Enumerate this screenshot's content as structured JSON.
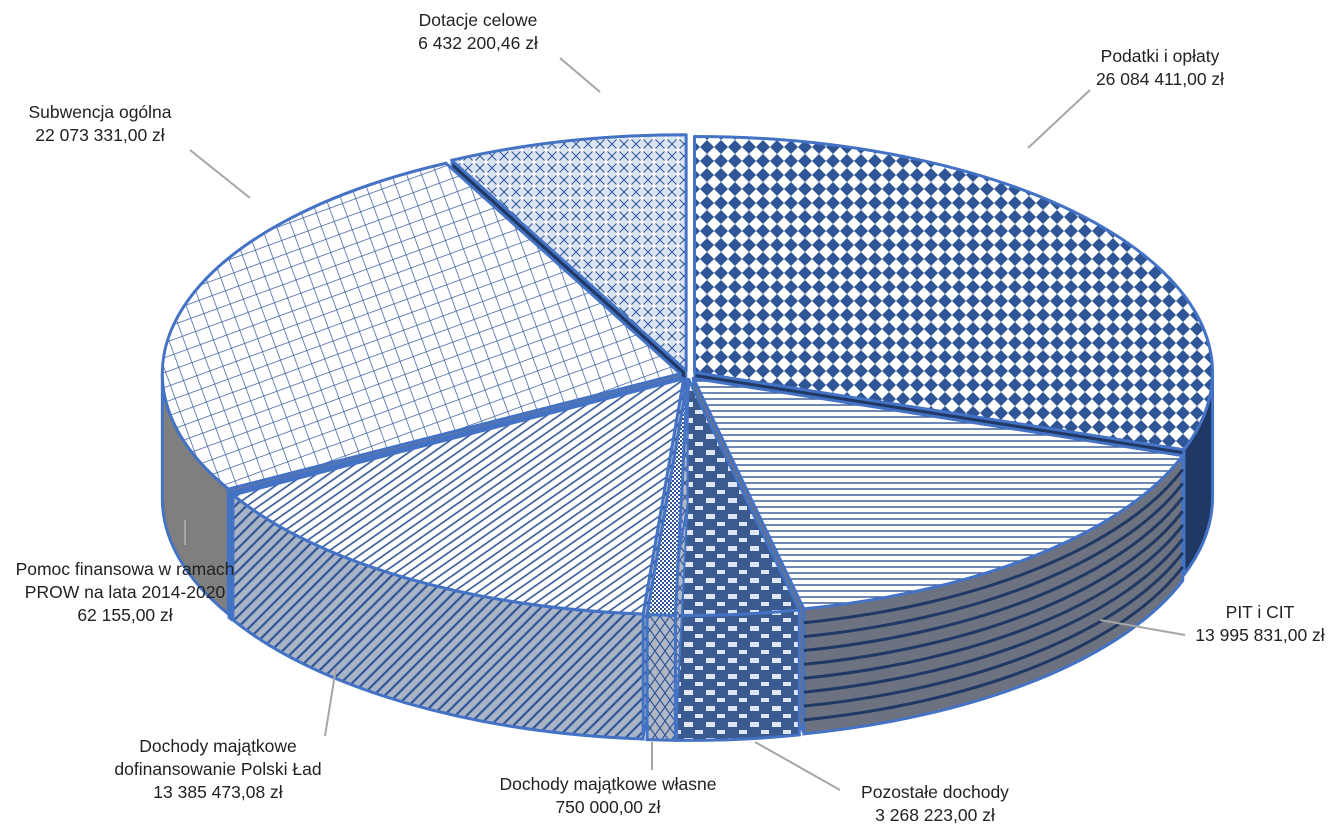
{
  "chart_data": {
    "type": "pie",
    "style": "3d-exploded",
    "currency": "zł",
    "slices": [
      {
        "name": "Podatki i opłaty",
        "value_label": "26 084 411,00 zł",
        "value": 26084411.0
      },
      {
        "name": "PIT i CIT",
        "value_label": "13 995 831,00 zł",
        "value": 13995831.0
      },
      {
        "name": "Pozostałe dochody",
        "value_label": "3 268 223,00 zł",
        "value": 3268223.0
      },
      {
        "name": "Dochody majątkowe własne",
        "value_label": "750 000,00 zł",
        "value": 750000.0
      },
      {
        "name": "Dochody majątkowe dofinansowanie Polski Ład",
        "name_lines": [
          "Dochody majątkowe",
          "dofinansowanie Polski Ład"
        ],
        "value_label": "13 385 473,08 zł",
        "value": 13385473.08
      },
      {
        "name": "Pomoc finansowa w ramach PROW na lata 2014-2020",
        "name_lines": [
          "Pomoc finansowa w ramach",
          "PROW na lata 2014-2020"
        ],
        "value_label": "62 155,00 zł",
        "value": 62155.0
      },
      {
        "name": "Subwencja ogólna",
        "value_label": "22 073 331,00 zł",
        "value": 22073331.0
      },
      {
        "name": "Dotacje celowe",
        "value_label": "6 432 200,46 zł",
        "value": 6432200.46
      }
    ],
    "colors": {
      "outline": "#4472c4",
      "pattern": "#2f5597",
      "side_dark": "#1f3864",
      "side_gray": "#7f7f7f",
      "leader": "#a6a6a6"
    }
  }
}
